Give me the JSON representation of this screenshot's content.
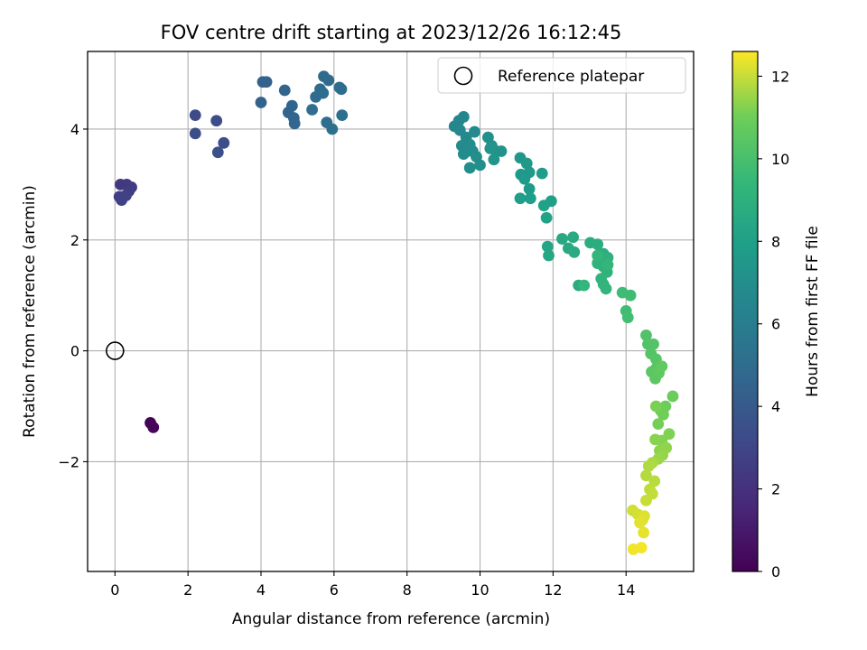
{
  "chart_data": {
    "type": "scatter",
    "title": "FOV centre drift starting at 2023/12/26 16:12:45",
    "xlabel": "Angular distance from reference (arcmin)",
    "ylabel": "Rotation from reference (arcmin)",
    "xlim": [
      -0.75,
      15.85
    ],
    "ylim": [
      -3.98,
      5.4
    ],
    "xticks": [
      "0",
      "2",
      "4",
      "6",
      "8",
      "10",
      "12",
      "14"
    ],
    "yticks": [
      "−2",
      "0",
      "2",
      "4"
    ],
    "grid": true,
    "legend": {
      "position": "top-right",
      "entries": [
        "Reference platepar"
      ]
    },
    "reference_point": {
      "x": 0,
      "y": 0,
      "label": "Reference platepar"
    },
    "colorbar": {
      "label": "Hours from first FF file",
      "colormap": "viridis",
      "range": [
        0,
        12.6
      ],
      "ticks": [
        "0",
        "2",
        "4",
        "6",
        "8",
        "10",
        "12"
      ]
    },
    "series": [
      {
        "x": [
          0.97,
          1.05,
          0.15,
          0.32,
          0.45,
          0.38,
          0.22,
          0.12,
          0.18,
          0.3,
          2.2,
          2.78,
          2.2,
          2.98,
          2.82,
          4.05,
          4.15,
          4.0,
          4.65,
          4.85,
          4.75,
          4.9,
          4.92,
          5.72,
          5.85,
          5.62,
          5.5,
          5.7,
          6.15,
          6.2,
          5.4,
          5.8,
          5.95,
          6.22,
          9.3,
          9.42,
          9.55,
          9.45,
          9.62,
          9.85,
          9.5,
          9.72,
          9.65,
          9.8,
          9.55,
          9.9,
          10.0,
          9.72,
          10.22,
          10.32,
          10.45,
          10.58,
          10.28,
          10.38,
          11.1,
          11.28,
          11.35,
          11.12,
          11.22,
          11.35,
          11.7,
          11.1,
          11.38,
          11.95,
          11.75,
          11.82,
          11.85,
          11.88,
          12.25,
          12.42,
          12.58,
          12.55,
          12.7,
          13.02,
          13.22,
          13.38,
          13.25,
          13.5,
          13.38,
          13.22,
          13.48,
          13.32,
          13.38,
          13.45,
          12.85,
          13.22,
          13.5,
          13.9,
          14.12,
          14.0,
          14.05,
          14.55,
          14.6,
          14.75,
          14.68,
          14.82,
          14.82,
          14.7,
          14.8,
          14.9,
          14.98,
          15.28,
          15.08,
          14.95,
          15.02,
          14.88,
          14.82,
          15.18,
          14.98,
          14.8,
          14.92,
          15.1,
          15.0,
          14.88,
          14.72,
          14.62,
          14.55,
          14.78,
          14.65,
          14.72,
          14.55,
          14.18,
          14.32,
          14.45,
          14.5,
          14.38,
          14.48,
          14.2,
          14.42
        ],
        "y": [
          -1.3,
          -1.38,
          3.0,
          3.0,
          2.95,
          2.88,
          2.78,
          2.78,
          2.72,
          2.8,
          4.25,
          4.15,
          3.92,
          3.75,
          3.58,
          4.85,
          4.85,
          4.48,
          4.7,
          4.42,
          4.3,
          4.2,
          4.1,
          4.95,
          4.88,
          4.72,
          4.58,
          4.65,
          4.75,
          4.72,
          4.35,
          4.12,
          4.0,
          4.25,
          4.05,
          4.15,
          4.22,
          3.98,
          3.85,
          3.95,
          3.7,
          3.72,
          3.6,
          3.6,
          3.55,
          3.5,
          3.35,
          3.3,
          3.85,
          3.7,
          3.6,
          3.6,
          3.65,
          3.45,
          3.48,
          3.38,
          3.22,
          3.18,
          3.1,
          2.92,
          3.2,
          2.75,
          2.75,
          2.7,
          2.62,
          2.4,
          1.88,
          1.72,
          2.02,
          1.85,
          1.78,
          2.05,
          1.18,
          1.95,
          1.92,
          1.75,
          1.65,
          1.68,
          1.52,
          1.58,
          1.42,
          1.3,
          1.2,
          1.12,
          1.18,
          1.72,
          1.55,
          1.05,
          1.0,
          0.72,
          0.6,
          0.28,
          0.12,
          0.12,
          -0.05,
          -0.15,
          -0.32,
          -0.38,
          -0.5,
          -0.4,
          -0.28,
          -0.82,
          -1.0,
          -1.08,
          -1.15,
          -1.32,
          -1.0,
          -1.5,
          -1.62,
          -1.6,
          -1.8,
          -1.75,
          -1.88,
          -1.95,
          -2.02,
          -2.08,
          -2.25,
          -2.35,
          -2.5,
          -2.58,
          -2.7,
          -2.88,
          -2.95,
          -3.05,
          -2.98,
          -3.1,
          -3.28,
          -3.58,
          -3.55
        ],
        "hours": [
          0.1,
          0.2,
          2.4,
          2.45,
          2.5,
          2.55,
          2.6,
          2.65,
          2.7,
          2.75,
          3.3,
          3.35,
          3.4,
          3.45,
          3.5,
          4.4,
          4.42,
          4.45,
          4.5,
          4.55,
          4.58,
          4.6,
          4.62,
          4.9,
          4.92,
          4.95,
          4.98,
          5.0,
          5.02,
          5.05,
          5.08,
          5.1,
          5.12,
          5.15,
          6.5,
          6.55,
          6.6,
          6.65,
          6.7,
          6.75,
          6.8,
          6.82,
          6.85,
          6.88,
          6.9,
          6.95,
          7.0,
          7.02,
          7.1,
          7.15,
          7.2,
          7.25,
          7.3,
          7.35,
          7.5,
          7.55,
          7.6,
          7.62,
          7.65,
          7.7,
          7.8,
          7.85,
          7.9,
          8.0,
          8.05,
          8.1,
          8.3,
          8.35,
          8.5,
          8.55,
          8.6,
          8.62,
          8.65,
          8.8,
          8.85,
          8.9,
          8.95,
          9.0,
          9.05,
          9.1,
          9.15,
          9.2,
          9.22,
          9.25,
          9.3,
          9.35,
          9.4,
          9.7,
          9.75,
          9.8,
          9.85,
          10.2,
          10.25,
          10.3,
          10.35,
          10.4,
          10.45,
          10.5,
          10.55,
          10.6,
          10.65,
          10.9,
          10.95,
          11.0,
          11.05,
          11.1,
          11.15,
          11.2,
          11.25,
          11.3,
          11.35,
          11.4,
          11.45,
          11.5,
          11.7,
          11.75,
          11.8,
          11.85,
          11.9,
          11.95,
          12.0,
          12.1,
          12.15,
          12.2,
          12.25,
          12.3,
          12.35,
          12.45,
          12.5
        ]
      }
    ]
  }
}
